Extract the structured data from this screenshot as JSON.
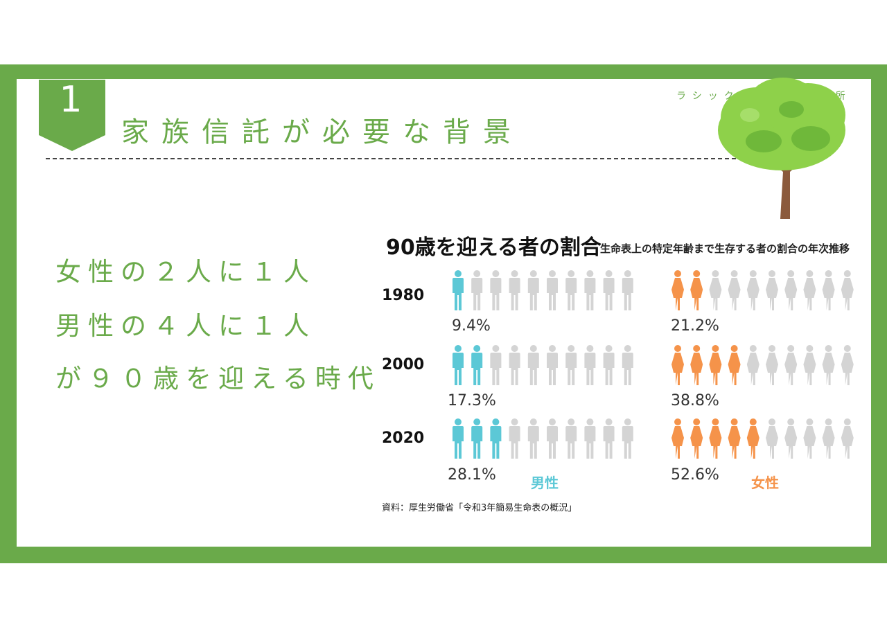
{
  "slide": {
    "number": "1",
    "title": "家族信託が必要な背景",
    "office": "ラシック行政書士事務所"
  },
  "headline": {
    "line1": "女性の２人に１人",
    "line2": "男性の４人に１人",
    "line3": "が９０歳を迎える時代"
  },
  "colors": {
    "frame": "#6aaa4a",
    "male": "#5cc8d6",
    "female": "#f5934a",
    "empty": "#d4d4d4"
  },
  "chart_data": {
    "type": "pictogram",
    "title": "90歳を迎える者の割合",
    "subtitle": "生命表上の特定年齢まで生存する者の割合の年次推移",
    "icons_per_row": 10,
    "categories": [
      "1980",
      "2000",
      "2020"
    ],
    "series": [
      {
        "name": "男性",
        "values": [
          9.4,
          17.3,
          28.1
        ],
        "labels": [
          "9.4%",
          "17.3%",
          "28.1%"
        ],
        "filled_icons": [
          1,
          2,
          3
        ]
      },
      {
        "name": "女性",
        "values": [
          21.2,
          38.8,
          52.6
        ],
        "labels": [
          "21.2%",
          "38.8%",
          "52.6%"
        ],
        "filled_icons": [
          2,
          4,
          5
        ]
      }
    ],
    "source": "資料：厚生労働省「令和3年簡易生命表の概況」"
  }
}
